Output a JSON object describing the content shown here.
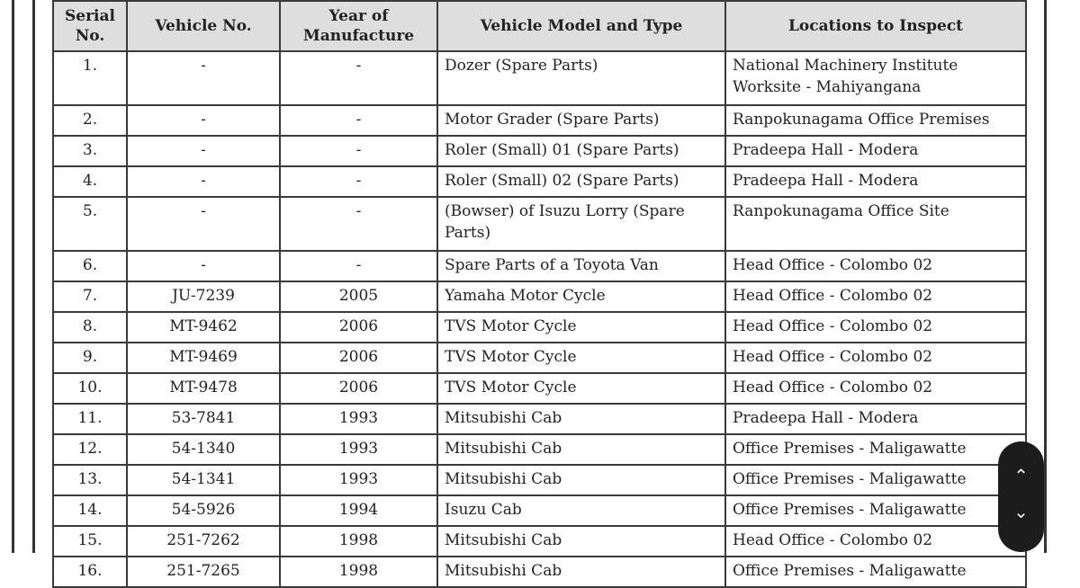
{
  "table": {
    "headers": [
      "Serial No.",
      "Vehicle No.",
      "Year of Manufacture",
      "Vehicle Model and Type",
      "Locations to Inspect"
    ],
    "rows": [
      [
        "1.",
        "-",
        "-",
        "Dozer (Spare Parts)",
        "National Machinery Institute Worksite - Mahiyangana"
      ],
      [
        "2.",
        "-",
        "-",
        "Motor Grader (Spare Parts)",
        "Ranpokunagama Office Premises"
      ],
      [
        "3.",
        "-",
        "-",
        "Roler (Small) 01 (Spare Parts)",
        "Pradeepa Hall - Modera"
      ],
      [
        "4.",
        "-",
        "-",
        "Roler (Small) 02 (Spare Parts)",
        "Pradeepa Hall - Modera"
      ],
      [
        "5.",
        "-",
        "-",
        "(Bowser) of Isuzu Lorry (Spare Parts)",
        "Ranpokunagama Office Site"
      ],
      [
        "6.",
        "-",
        "-",
        "Spare Parts of a Toyota Van",
        "Head Office - Colombo 02"
      ],
      [
        "7.",
        "JU-7239",
        "2005",
        "Yamaha Motor Cycle",
        "Head Office - Colombo 02"
      ],
      [
        "8.",
        "MT-9462",
        "2006",
        "TVS Motor Cycle",
        "Head Office - Colombo 02"
      ],
      [
        "9.",
        "MT-9469",
        "2006",
        "TVS Motor Cycle",
        "Head Office - Colombo 02"
      ],
      [
        "10.",
        "MT-9478",
        "2006",
        "TVS Motor Cycle",
        "Head Office - Colombo 02"
      ],
      [
        "11.",
        "53-7841",
        "1993",
        "Mitsubishi Cab",
        "Pradeepa Hall - Modera"
      ],
      [
        "12.",
        "54-1340",
        "1993",
        "Mitsubishi Cab",
        "Office Premises - Maligawatte"
      ],
      [
        "13.",
        "54-1341",
        "1993",
        "Mitsubishi Cab",
        "Office Premises - Maligawatte"
      ],
      [
        "14.",
        "54-5926",
        "1994",
        "Isuzu Cab",
        "Office Premises - Maligawatte"
      ],
      [
        "15.",
        "251-7262",
        "1998",
        "Mitsubishi Cab",
        "Head Office - Colombo 02"
      ],
      [
        "16.",
        "251-7265",
        "1998",
        "Mitsubishi Cab",
        "Office Premises - Maligawatte"
      ]
    ]
  },
  "scroll_controls": {
    "up_icon": "chevron-up-icon",
    "down_icon": "chevron-down-icon",
    "up_glyph": "⌃",
    "down_glyph": "⌄"
  }
}
